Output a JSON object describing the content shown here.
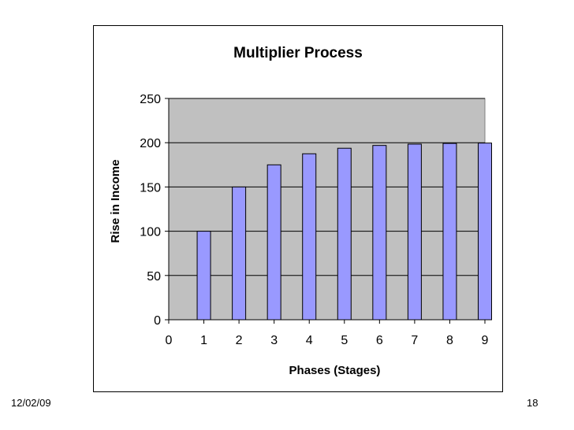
{
  "slide": {
    "date": "12/02/09",
    "page_number": "18"
  },
  "chart_data": {
    "type": "bar",
    "title": "Multiplier Process",
    "xlabel": "Phases (Stages)",
    "ylabel": "Rise in Income",
    "x": [
      1,
      2,
      3,
      4,
      5,
      6,
      7,
      8,
      9
    ],
    "values": [
      100,
      150,
      175,
      187.5,
      193.75,
      196.9,
      198.4,
      199.2,
      199.6
    ],
    "xlim": [
      0,
      9
    ],
    "ylim": [
      0,
      250
    ],
    "x_ticks": [
      "0",
      "1",
      "2",
      "3",
      "4",
      "5",
      "6",
      "7",
      "8",
      "9"
    ],
    "y_ticks": [
      "0",
      "50",
      "100",
      "150",
      "200",
      "250"
    ],
    "grid": true,
    "colors": {
      "bar_fill": "#9999ff",
      "bar_stroke": "#000000",
      "plot_background": "#c0c0c0",
      "gridline": "#000000"
    }
  }
}
